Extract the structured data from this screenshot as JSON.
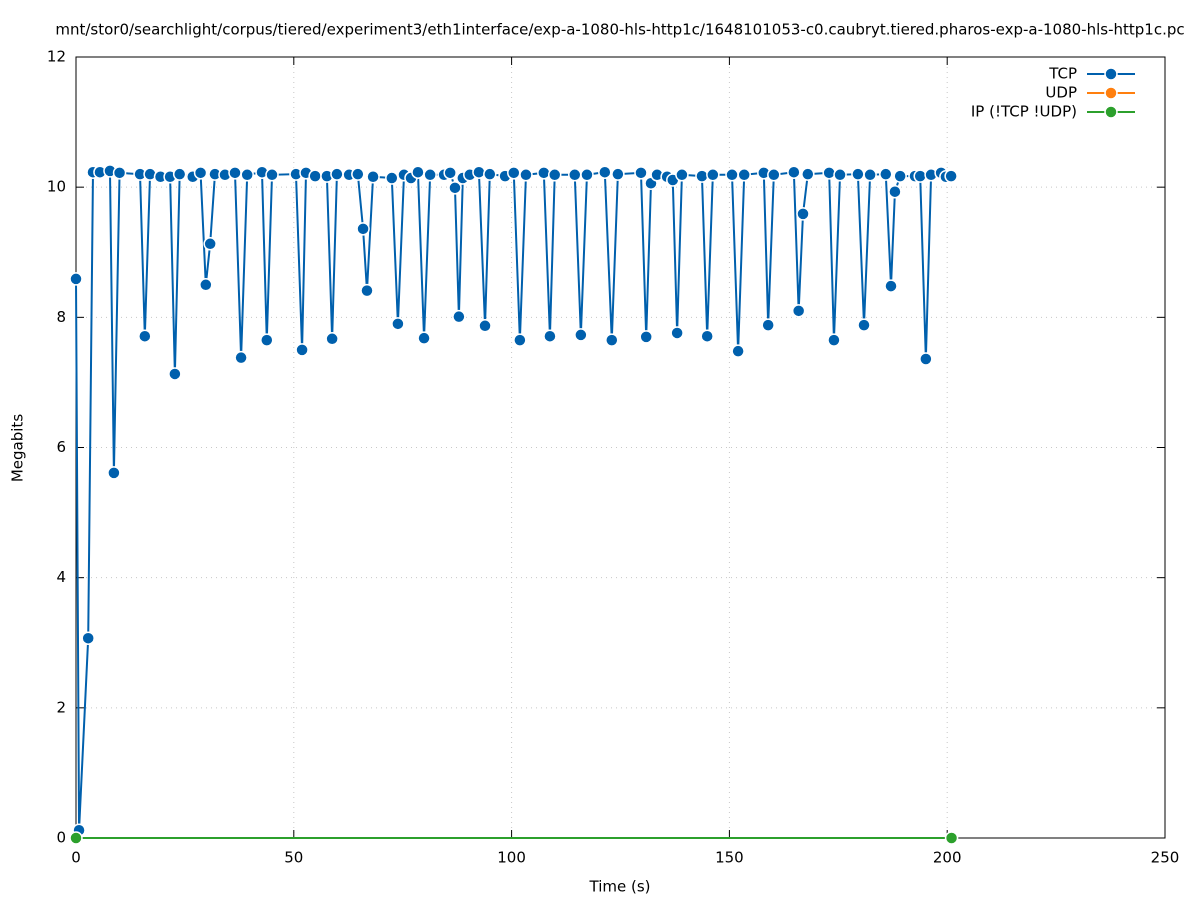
{
  "chart_data": {
    "type": "line",
    "title": "mnt/stor0/searchlight/corpus/tiered/experiment3/eth1interface/exp-a-1080-hls-http1c/1648101053-c0.caubryt.tiered.pharos-exp-a-1080-hls-http1c.pc",
    "xlabel": "Time (s)",
    "ylabel": "Megabits",
    "xlim": [
      0,
      250
    ],
    "xticks": [
      0,
      50,
      100,
      150,
      200,
      250
    ],
    "ylim": [
      0,
      12
    ],
    "yticks": [
      0,
      2,
      4,
      6,
      8,
      10,
      12
    ],
    "grid": true,
    "legend": "top-right",
    "series": [
      {
        "name": "TCP",
        "color": "#0060ad",
        "x": [
          0,
          0.7,
          2.8,
          3.9,
          5.5,
          7.8,
          8.7,
          10,
          14.7,
          15.8,
          17,
          19.4,
          21.6,
          22.7,
          23.8,
          26.8,
          28.6,
          29.8,
          30.8,
          31.9,
          34.2,
          36.5,
          37.9,
          39.3,
          42.7,
          43.8,
          45,
          50.5,
          51.9,
          52.8,
          54.9,
          57.6,
          58.8,
          59.9,
          62.7,
          64.7,
          65.9,
          66.8,
          68.2,
          72.5,
          73.9,
          75.3,
          76.9,
          78.5,
          79.9,
          81.3,
          84.5,
          85.9,
          87,
          87.9,
          88.8,
          90.4,
          92.5,
          93.9,
          95,
          98.5,
          100.5,
          101.9,
          103.3,
          107.4,
          108.8,
          109.9,
          114.5,
          115.9,
          117.3,
          121.4,
          123,
          124.4,
          129.7,
          130.9,
          132,
          133.4,
          135.7,
          137,
          138,
          139.1,
          143.7,
          144.9,
          146.2,
          150.6,
          152,
          153.4,
          157.9,
          158.9,
          160.2,
          164.8,
          165.9,
          166.9,
          168,
          172.9,
          174,
          175.4,
          179.5,
          180.9,
          182.3,
          185.9,
          187.1,
          188,
          189.2,
          192.6,
          193.8,
          195.1,
          196.3,
          198.6,
          199.7,
          200.9
        ],
        "values": [
          8.59,
          0.12,
          3.07,
          10.23,
          10.23,
          10.25,
          5.61,
          10.22,
          10.2,
          7.71,
          10.2,
          10.16,
          10.16,
          7.13,
          10.2,
          10.16,
          10.22,
          8.5,
          9.13,
          10.2,
          10.19,
          10.22,
          7.38,
          10.19,
          10.23,
          7.65,
          10.19,
          10.2,
          7.5,
          10.22,
          10.17,
          10.17,
          7.67,
          10.2,
          10.19,
          10.2,
          9.36,
          8.41,
          10.16,
          10.14,
          7.9,
          10.19,
          10.14,
          10.23,
          7.68,
          10.19,
          10.19,
          10.22,
          9.99,
          8.01,
          10.14,
          10.19,
          10.23,
          7.87,
          10.2,
          10.17,
          10.22,
          7.65,
          10.19,
          10.22,
          7.71,
          10.19,
          10.19,
          7.73,
          10.19,
          10.23,
          7.65,
          10.2,
          10.22,
          7.7,
          10.06,
          10.19,
          10.16,
          10.11,
          7.76,
          10.19,
          10.17,
          7.71,
          10.19,
          10.19,
          7.48,
          10.19,
          10.22,
          7.88,
          10.19,
          10.23,
          8.1,
          9.59,
          10.2,
          10.22,
          7.65,
          10.19,
          10.2,
          7.88,
          10.19,
          10.2,
          8.48,
          9.93,
          10.17,
          10.17,
          10.17,
          7.36,
          10.19,
          10.22,
          10.16,
          10.17
        ]
      },
      {
        "name": "UDP",
        "color": "#ff7f0e",
        "x": [],
        "values": []
      },
      {
        "name": "IP (!TCP  !UDP)",
        "color": "#2ca02c",
        "x": [
          0,
          201
        ],
        "values": [
          0,
          0
        ]
      }
    ]
  }
}
